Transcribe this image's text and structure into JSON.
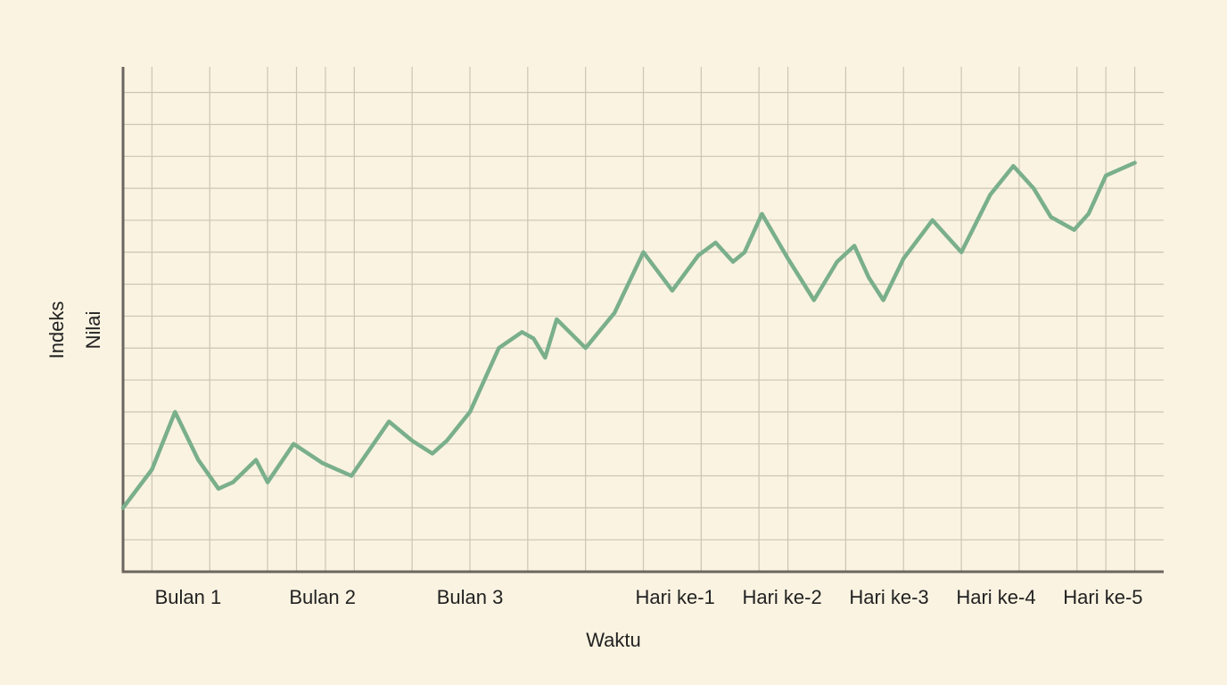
{
  "chart_data": {
    "type": "line",
    "xlabel": "Waktu",
    "ylabel": [
      "Indeks",
      "Nilai"
    ],
    "x": [
      0,
      1,
      1.8,
      2.6,
      3.3,
      3.8,
      4.6,
      5,
      5.9,
      6.9,
      7.9,
      9.2,
      10,
      10.7,
      11.2,
      12,
      13,
      13.8,
      14.2,
      14.6,
      15,
      16,
      17,
      18,
      19,
      19.9,
      20.5,
      20.7,
      21.1,
      21.5,
      22.1,
      23,
      23.9,
      24.7,
      25.3,
      25.8,
      26.3,
      27,
      28,
      29,
      30,
      30.8,
      31.5,
      32.1,
      32.9,
      33.4,
      34,
      35
    ],
    "values": [
      2.0,
      3.2,
      5.0,
      3.5,
      2.6,
      2.8,
      3.5,
      2.8,
      4.0,
      3.4,
      3.0,
      4.7,
      4.1,
      3.7,
      4.1,
      5.0,
      7.0,
      7.5,
      7.3,
      6.7,
      7.9,
      7.0,
      8.1,
      10.0,
      8.8,
      9.9,
      10.3,
      10.1,
      9.7,
      10.0,
      11.2,
      9.8,
      8.5,
      9.7,
      10.2,
      9.2,
      8.5,
      9.8,
      11.0,
      10.0,
      11.8,
      12.7,
      12.0,
      11.1,
      10.7,
      11.2,
      12.4,
      12.8
    ],
    "color": "#7aaf8c",
    "xlim": [
      0,
      36
    ],
    "ylim": [
      0,
      15.8
    ],
    "xticks": [
      1,
      3,
      5,
      6,
      7,
      8,
      10,
      12,
      14,
      16,
      18,
      20,
      22,
      23,
      25,
      27,
      29,
      31,
      33,
      34,
      35
    ],
    "xtick_labels": [
      {
        "value": 2.25,
        "label": "Bulan 1"
      },
      {
        "value": 6.9,
        "label": "Bulan 2"
      },
      {
        "value": 12,
        "label": "Bulan 3"
      },
      {
        "value": 19.1,
        "label": "Hari ke-1"
      },
      {
        "value": 22.8,
        "label": "Hari ke-2"
      },
      {
        "value": 26.5,
        "label": "Hari ke-3"
      },
      {
        "value": 30.2,
        "label": "Hari ke-4"
      },
      {
        "value": 33.9,
        "label": "Hari ke-5"
      }
    ],
    "yticks": [
      1,
      2,
      3,
      4,
      5,
      6,
      7,
      8,
      9,
      10,
      11,
      12,
      13,
      14,
      15
    ],
    "ytick_labels": false,
    "grid": true
  }
}
